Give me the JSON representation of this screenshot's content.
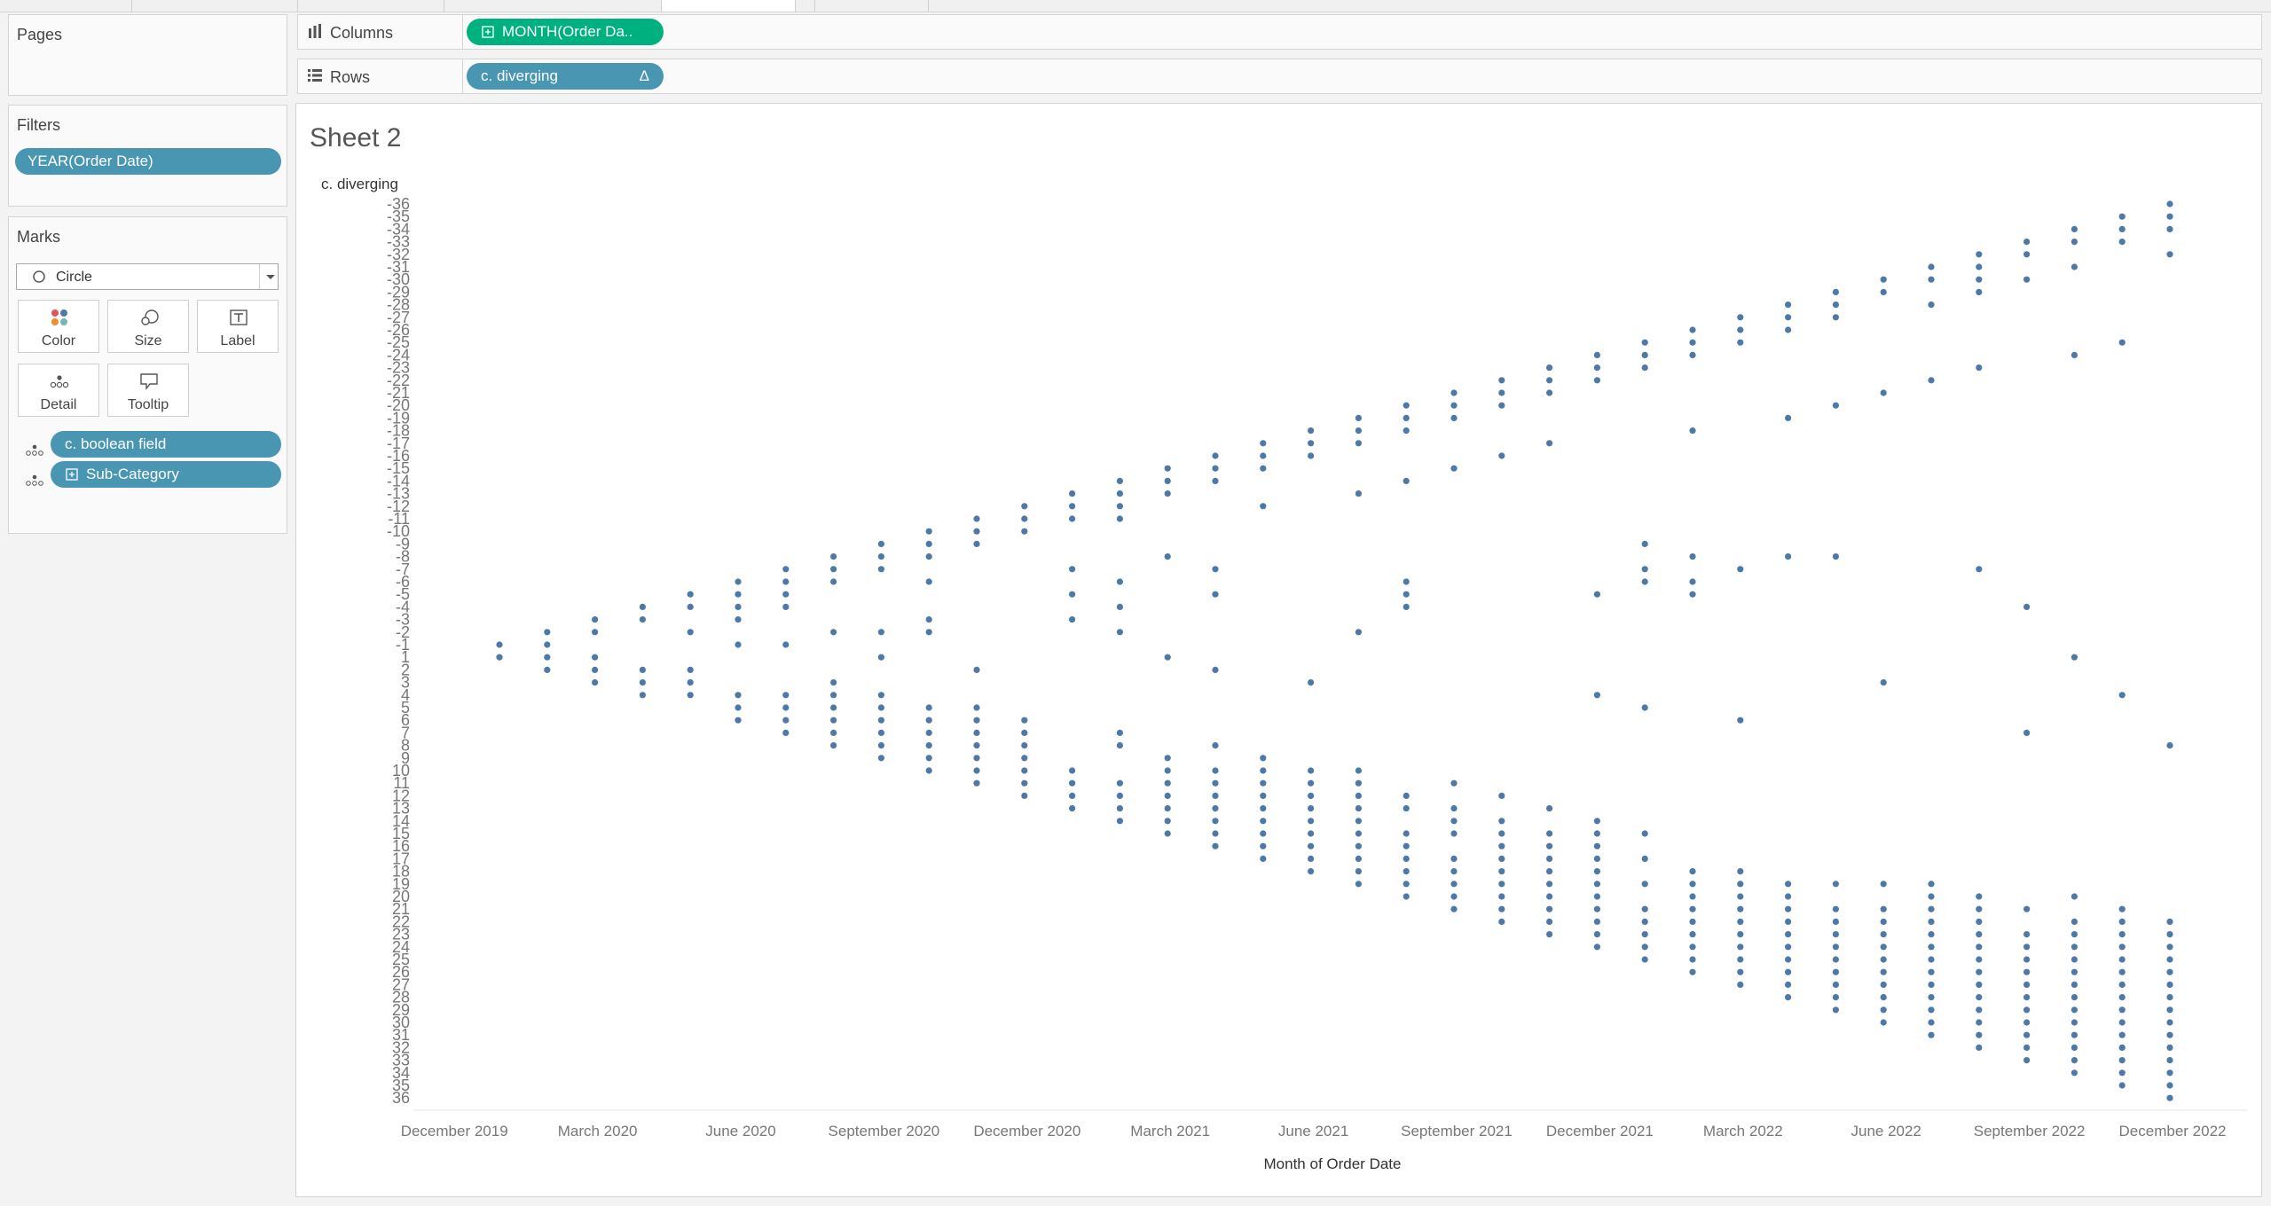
{
  "left_panel": {
    "pages_title": "Pages",
    "filters_title": "Filters",
    "filter_pill": "YEAR(Order Date)",
    "marks_title": "Marks",
    "mark_type": "Circle",
    "mark_buttons": {
      "color": "Color",
      "size": "Size",
      "label": "Label",
      "detail": "Detail",
      "tooltip": "Tooltip"
    },
    "detail_fields": [
      "c. boolean field",
      "Sub-Category"
    ]
  },
  "shelves": {
    "columns_label": "Columns",
    "columns_pill": "MONTH(Order Da..",
    "rows_label": "Rows",
    "rows_pill": "c. diverging",
    "rows_pill_icon": "Δ"
  },
  "sheet": {
    "title": "Sheet 2"
  },
  "colors": {
    "pill_blue": "#4996b2",
    "pill_green": "#00b180",
    "mark": "#4e79a7"
  },
  "chart_data": {
    "type": "scatter",
    "title": "Sheet 2",
    "xlabel": "Month of Order Date",
    "ylabel": "c. diverging",
    "x_tick_labels": [
      "December 2019",
      "March 2020",
      "June 2020",
      "September 2020",
      "December 2020",
      "March 2021",
      "June 2021",
      "September 2021",
      "December 2021",
      "March 2022",
      "June 2022",
      "September 2022",
      "December 2022"
    ],
    "x_categories": [
      "Jan 2020",
      "Feb 2020",
      "Mar 2020",
      "Apr 2020",
      "May 2020",
      "Jun 2020",
      "Jul 2020",
      "Aug 2020",
      "Sep 2020",
      "Oct 2020",
      "Nov 2020",
      "Dec 2020",
      "Jan 2021",
      "Feb 2021",
      "Mar 2021",
      "Apr 2021",
      "May 2021",
      "Jun 2021",
      "Jul 2021",
      "Aug 2021",
      "Sep 2021",
      "Oct 2021",
      "Nov 2021",
      "Dec 2021",
      "Jan 2022",
      "Feb 2022",
      "Mar 2022",
      "Apr 2022",
      "May 2022",
      "Jun 2022",
      "Jul 2022",
      "Aug 2022",
      "Sep 2022",
      "Oct 2022",
      "Nov 2022",
      "Dec 2022"
    ],
    "y_tick_labels": [
      "-36",
      "-35",
      "-34",
      "-33",
      "-32",
      "-31",
      "-30",
      "-29",
      "-28",
      "-27",
      "-26",
      "-25",
      "-24",
      "-23",
      "-22",
      "-21",
      "-20",
      "-19",
      "-18",
      "-17",
      "-16",
      "-15",
      "-14",
      "-13",
      "-12",
      "-11",
      "-10",
      "-9",
      "-8",
      "-7",
      "-6",
      "-5",
      "-4",
      "-3",
      "-2",
      "-1",
      "1",
      "2",
      "3",
      "4",
      "5",
      "6",
      "7",
      "8",
      "9",
      "10",
      "11",
      "12",
      "13",
      "14",
      "15",
      "16",
      "17",
      "18",
      "19",
      "20",
      "21",
      "22",
      "23",
      "24",
      "25",
      "26",
      "27",
      "28",
      "29",
      "30",
      "31",
      "32",
      "33",
      "34",
      "35",
      "36"
    ],
    "ylim": [
      -36,
      36
    ],
    "grid": false,
    "series": [
      {
        "values_by_month": [
          [
            -1,
            1
          ],
          [
            -2,
            -1,
            1,
            2
          ],
          [
            -3,
            -2,
            1,
            2,
            3
          ],
          [
            -4,
            -3,
            2,
            3,
            4
          ],
          [
            -5,
            -4,
            -2,
            2,
            3,
            4
          ],
          [
            -6,
            -5,
            -4,
            -3,
            -1,
            4,
            5,
            6
          ],
          [
            -7,
            -6,
            -5,
            -4,
            -1,
            4,
            5,
            6,
            7
          ],
          [
            -8,
            -7,
            -6,
            -2,
            3,
            4,
            5,
            6,
            7,
            8
          ],
          [
            -9,
            -8,
            -7,
            -2,
            1,
            4,
            5,
            6,
            7,
            8,
            9
          ],
          [
            -10,
            -9,
            -8,
            -6,
            -3,
            -2,
            5,
            6,
            7,
            8,
            9,
            10
          ],
          [
            -11,
            -10,
            -9,
            2,
            5,
            6,
            7,
            8,
            9,
            10,
            11
          ],
          [
            -12,
            -11,
            -10,
            6,
            7,
            8,
            9,
            10,
            11,
            12
          ],
          [
            -13,
            -12,
            -11,
            -7,
            -5,
            -3,
            10,
            11,
            12,
            13
          ],
          [
            -14,
            -13,
            -12,
            -11,
            -6,
            -4,
            -2,
            7,
            8,
            11,
            12,
            13,
            14
          ],
          [
            -15,
            -14,
            -13,
            -8,
            1,
            9,
            10,
            11,
            12,
            13,
            14,
            15
          ],
          [
            -16,
            -15,
            -14,
            -7,
            -5,
            2,
            8,
            10,
            11,
            12,
            13,
            14,
            15,
            16
          ],
          [
            -17,
            -16,
            -15,
            -12,
            9,
            10,
            11,
            12,
            13,
            14,
            15,
            16,
            17
          ],
          [
            -18,
            -17,
            -16,
            3,
            10,
            11,
            12,
            13,
            14,
            15,
            16,
            17,
            18
          ],
          [
            -19,
            -18,
            -17,
            -13,
            -2,
            10,
            11,
            12,
            13,
            14,
            15,
            16,
            17,
            18,
            19
          ],
          [
            -20,
            -19,
            -18,
            -14,
            -6,
            -5,
            -4,
            12,
            13,
            15,
            16,
            17,
            18,
            19,
            20
          ],
          [
            -21,
            -20,
            -19,
            -15,
            11,
            13,
            14,
            15,
            17,
            18,
            19,
            20,
            21
          ],
          [
            -22,
            -21,
            -20,
            -16,
            12,
            14,
            15,
            16,
            17,
            18,
            19,
            20,
            21,
            22
          ],
          [
            -23,
            -22,
            -21,
            -17,
            13,
            15,
            16,
            17,
            18,
            19,
            20,
            21,
            22,
            23
          ],
          [
            -24,
            -23,
            -22,
            -5,
            4,
            14,
            15,
            16,
            17,
            18,
            19,
            20,
            21,
            22,
            23,
            24
          ],
          [
            -25,
            -24,
            -23,
            -9,
            -7,
            -6,
            5,
            15,
            17,
            19,
            21,
            22,
            23,
            24,
            25
          ],
          [
            -26,
            -25,
            -24,
            -18,
            -8,
            -6,
            -5,
            18,
            19,
            20,
            21,
            22,
            23,
            24,
            25,
            26
          ],
          [
            -27,
            -26,
            -25,
            -7,
            6,
            18,
            19,
            20,
            21,
            22,
            23,
            24,
            25,
            26,
            27
          ],
          [
            -28,
            -27,
            -26,
            -19,
            -8,
            19,
            20,
            21,
            22,
            23,
            24,
            25,
            26,
            27,
            28
          ],
          [
            -29,
            -28,
            -27,
            -20,
            -8,
            19,
            21,
            22,
            23,
            24,
            25,
            26,
            27,
            28,
            29
          ],
          [
            -30,
            -29,
            -21,
            3,
            19,
            21,
            22,
            23,
            24,
            25,
            26,
            27,
            28,
            29,
            30
          ],
          [
            -31,
            -30,
            -28,
            -22,
            19,
            20,
            21,
            22,
            23,
            24,
            25,
            26,
            27,
            28,
            29,
            30,
            31
          ],
          [
            -32,
            -31,
            -30,
            -29,
            -23,
            -7,
            20,
            21,
            22,
            23,
            24,
            25,
            26,
            27,
            28,
            29,
            30,
            31,
            32
          ],
          [
            -33,
            -32,
            -30,
            -4,
            7,
            21,
            23,
            24,
            25,
            26,
            27,
            28,
            29,
            30,
            31,
            32,
            33
          ],
          [
            -34,
            -33,
            -31,
            -24,
            1,
            20,
            22,
            23,
            24,
            25,
            26,
            27,
            28,
            29,
            30,
            31,
            32,
            33,
            34
          ],
          [
            -35,
            -34,
            -33,
            -25,
            4,
            21,
            22,
            23,
            24,
            25,
            26,
            27,
            28,
            29,
            30,
            31,
            32,
            33,
            34,
            35
          ],
          [
            -36,
            -35,
            -34,
            -32,
            8,
            22,
            23,
            24,
            25,
            26,
            27,
            28,
            29,
            30,
            31,
            32,
            33,
            34,
            35,
            36
          ]
        ]
      }
    ]
  }
}
